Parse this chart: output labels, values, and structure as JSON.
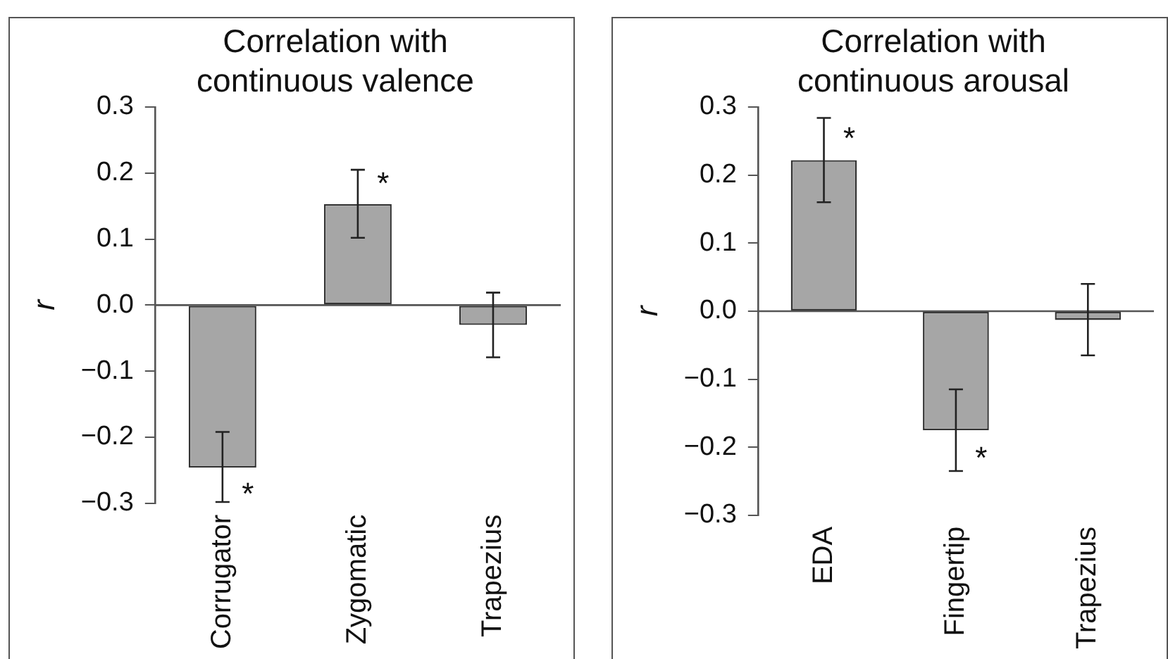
{
  "chart_data": [
    {
      "type": "bar",
      "title": "Correlation with continuous valence",
      "ylabel": "r",
      "categories": [
        "Corrugator",
        "Zygomatic",
        "Trapezius"
      ],
      "values": [
        -0.246,
        0.153,
        -0.03
      ],
      "color": "#a6a6a6",
      "errors": [
        [
          -0.298,
          -0.192
        ],
        [
          0.102,
          0.205
        ],
        [
          -0.079,
          0.019
        ]
      ],
      "ylim": [
        -0.3,
        0.3
      ],
      "yticks": [
        {
          "value": 0.3,
          "label": "0.3"
        },
        {
          "value": 0.2,
          "label": "0.2"
        },
        {
          "value": 0.1,
          "label": "0.1"
        },
        {
          "value": 0,
          "label": "0.0"
        },
        {
          "value": -0.1,
          "label": "−0.1"
        },
        {
          "value": -0.2,
          "label": "−0.2"
        },
        {
          "value": -0.3,
          "label": "−0.3"
        }
      ],
      "annotations": [
        {
          "text": "*",
          "x": "Corrugator",
          "y": -0.28
        },
        {
          "text": "*",
          "x": "Zygomatic",
          "y": 0.19
        }
      ],
      "legend": false
    },
    {
      "type": "bar",
      "title": "Correlation with continuous arousal",
      "ylabel": "r",
      "categories": [
        "EDA",
        "Fingertip",
        "Trapezius"
      ],
      "values": [
        0.222,
        -0.175,
        -0.013
      ],
      "color": "#a6a6a6",
      "errors": [
        [
          0.16,
          0.284
        ],
        [
          -0.235,
          -0.115
        ],
        [
          -0.065,
          0.04
        ]
      ],
      "ylim": [
        -0.3,
        0.3
      ],
      "yticks": [
        {
          "value": 0.3,
          "label": "0.3"
        },
        {
          "value": 0.2,
          "label": "0.2"
        },
        {
          "value": 0.1,
          "label": "0.1"
        },
        {
          "value": 0,
          "label": "0.0"
        },
        {
          "value": -0.1,
          "label": "−0.1"
        },
        {
          "value": -0.2,
          "label": "−0.2"
        },
        {
          "value": -0.3,
          "label": "−0.3"
        }
      ],
      "annotations": [
        {
          "text": "*",
          "x": "EDA",
          "y": 0.26
        },
        {
          "text": "*",
          "x": "Fingertip",
          "y": -0.21
        }
      ],
      "legend": false
    }
  ]
}
